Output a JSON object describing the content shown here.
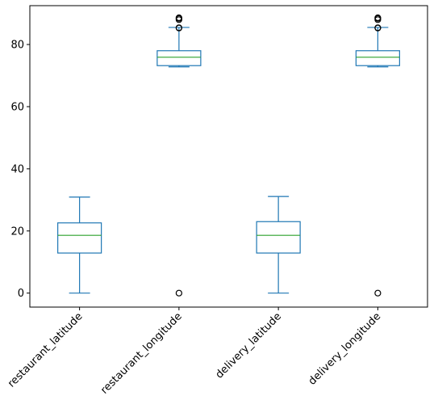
{
  "chart_data": {
    "type": "boxplot",
    "title": "",
    "xlabel": "",
    "ylabel": "",
    "ylim": [
      -4.5,
      92.5
    ],
    "yticks": [
      0,
      20,
      40,
      60,
      80
    ],
    "ytick_labels": [
      "0",
      "20",
      "40",
      "60",
      "80"
    ],
    "grid": false,
    "legend": "none",
    "colors": {
      "box": "#1f77b4",
      "median": "#2ca02c",
      "flier": "#000000"
    },
    "categories": [
      "restaurant_latitude",
      "restaurant_longitude",
      "delivery_latitude",
      "delivery_longitude"
    ],
    "series": [
      {
        "category": "restaurant_latitude",
        "whislo": 0,
        "q1": 12.9,
        "med": 18.6,
        "q3": 22.6,
        "whishi": 30.9,
        "fliers": []
      },
      {
        "category": "restaurant_longitude",
        "whislo": 72.8,
        "q1": 73.2,
        "med": 75.9,
        "q3": 78.0,
        "whishi": 85.5,
        "fliers": [
          0,
          85.3,
          85.4,
          88.0,
          88.4,
          88.6
        ]
      },
      {
        "category": "delivery_latitude",
        "whislo": 0,
        "q1": 12.9,
        "med": 18.6,
        "q3": 23.0,
        "whishi": 31.1,
        "fliers": []
      },
      {
        "category": "delivery_longitude",
        "whislo": 72.8,
        "q1": 73.2,
        "med": 75.9,
        "q3": 78.0,
        "whishi": 85.5,
        "fliers": [
          0,
          85.3,
          85.4,
          88.0,
          88.4,
          88.6
        ]
      }
    ]
  }
}
